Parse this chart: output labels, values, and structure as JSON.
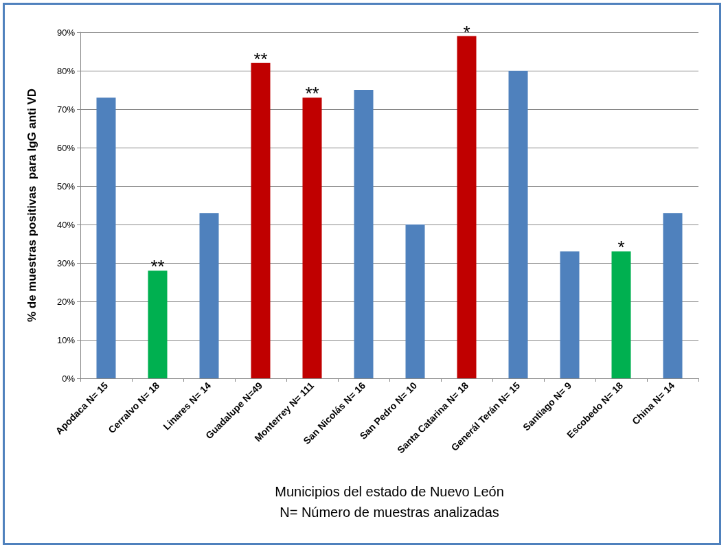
{
  "chart_data": {
    "type": "bar",
    "ylabel": "% de muestras positivas  para IgG anti VD",
    "xlabel": "Municipios del estado de Nuevo León\nN= Número de muestras analizadas",
    "categories": [
      "Apodaca N= 15",
      "Cerralvo N= 18",
      "Linares N= 14",
      "Guadalupe N=49",
      "Monterrey N= 111",
      "San Nicolás N= 16",
      "San Pedro N= 10",
      "Santa Catarina N= 18",
      "Generál Terán N= 15",
      "Santiago N= 9",
      "Escobedo N= 18",
      "China N= 14"
    ],
    "values": [
      73,
      28,
      43,
      82,
      73,
      75,
      40,
      89,
      80,
      33,
      33,
      43
    ],
    "colors": [
      "#4f81bd",
      "#00b050",
      "#4f81bd",
      "#c00000",
      "#c00000",
      "#4f81bd",
      "#4f81bd",
      "#c00000",
      "#4f81bd",
      "#4f81bd",
      "#00b050",
      "#4f81bd"
    ],
    "ylim": [
      0,
      90
    ],
    "yticks": [
      {
        "value": 0,
        "label": "0%"
      },
      {
        "value": 10,
        "label": "10%"
      },
      {
        "value": 20,
        "label": "20%"
      },
      {
        "value": 30,
        "label": "30%"
      },
      {
        "value": 40,
        "label": "40%"
      },
      {
        "value": 50,
        "label": "50%"
      },
      {
        "value": 60,
        "label": "60%"
      },
      {
        "value": 70,
        "label": "70%"
      },
      {
        "value": 80,
        "label": "80%"
      },
      {
        "value": 90,
        "label": "90%"
      }
    ],
    "grid": "y",
    "annotations": [
      {
        "text": "**",
        "x": "Cerralvo N= 18",
        "y": 28
      },
      {
        "text": "**",
        "x": "Guadalupe N=49",
        "y": 82
      },
      {
        "text": "**",
        "x": "Monterrey N= 111",
        "y": 73
      },
      {
        "text": "*",
        "x": "Santa Catarina N= 18",
        "y": 89
      },
      {
        "text": "*",
        "x": "Escobedo N= 18",
        "y": 33
      }
    ]
  }
}
